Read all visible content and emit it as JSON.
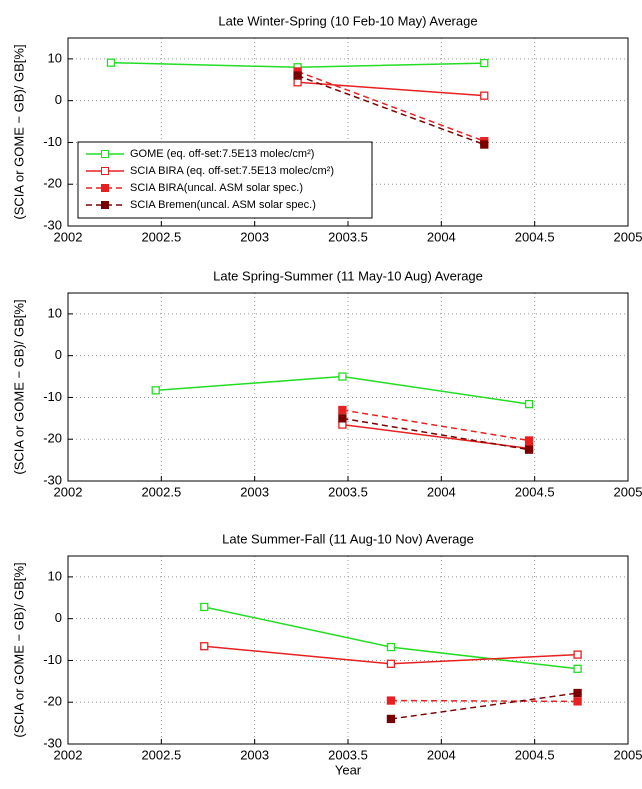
{
  "chart_data": [
    {
      "type": "line",
      "title": "Late Winter-Spring (10 Feb-10 May) Average",
      "ylabel": "(SCIA or GOME − GB)/ GB[%]",
      "xlim": [
        2002,
        2005
      ],
      "xticks": [
        2002,
        2002.5,
        2003,
        2003.5,
        2004,
        2004.5,
        2005
      ],
      "ylim": [
        -30,
        15
      ],
      "yticks": [
        -30,
        -20,
        -10,
        0,
        10
      ],
      "grid": true,
      "legend": "lower left",
      "series": [
        {
          "name": "GOME (eq. off-set:7.5E13 molec/cm²)",
          "color": "#22dd22",
          "dash": false,
          "marker": "open",
          "x": [
            2002.23,
            2003.23,
            2004.23
          ],
          "values": [
            9.1,
            8,
            9
          ]
        },
        {
          "name": "SCIA BIRA (eq. off-set:7.5E13 molec/cm²)",
          "color": "#e82020",
          "dash": false,
          "marker": "open",
          "x": [
            2003.23,
            2004.23
          ],
          "values": [
            4.4,
            1.2
          ]
        },
        {
          "name": "SCIA BIRA(uncal. ASM solar spec.)",
          "color": "#e82020",
          "dash": true,
          "marker": "filled",
          "x": [
            2003.23,
            2004.23
          ],
          "values": [
            7,
            -9.7
          ]
        },
        {
          "name": "SCIA Bremen(uncal. ASM solar spec.)",
          "color": "#7a0000",
          "dash": true,
          "marker": "filled",
          "x": [
            2003.23,
            2004.23
          ],
          "values": [
            6,
            -10.5
          ]
        }
      ]
    },
    {
      "type": "line",
      "title": "Late Spring-Summer (11 May-10 Aug) Average",
      "ylabel": "(SCIA or GOME − GB)/ GB[%]",
      "xlim": [
        2002,
        2005
      ],
      "xticks": [
        2002,
        2002.5,
        2003,
        2003.5,
        2004,
        2004.5,
        2005
      ],
      "ylim": [
        -30,
        15
      ],
      "yticks": [
        -30,
        -20,
        -10,
        0,
        10
      ],
      "grid": true,
      "series": [
        {
          "color": "#22dd22",
          "dash": false,
          "marker": "open",
          "x": [
            2002.47,
            2003.47,
            2004.47
          ],
          "values": [
            -8.3,
            -5,
            -11.6
          ]
        },
        {
          "color": "#e82020",
          "dash": false,
          "marker": "open",
          "x": [
            2003.47,
            2004.47
          ],
          "values": [
            -16.5,
            -22.2
          ]
        },
        {
          "color": "#e82020",
          "dash": true,
          "marker": "filled",
          "x": [
            2003.47,
            2004.47
          ],
          "values": [
            -13,
            -20.3
          ]
        },
        {
          "color": "#7a0000",
          "dash": true,
          "marker": "filled",
          "x": [
            2003.47,
            2004.47
          ],
          "values": [
            -15,
            -22.5
          ]
        }
      ]
    },
    {
      "type": "line",
      "title": "Late Summer-Fall (11 Aug-10 Nov) Average",
      "ylabel": "(SCIA or GOME − GB)/ GB[%]",
      "xlabel": "Year",
      "xlim": [
        2002,
        2005
      ],
      "xticks": [
        2002,
        2002.5,
        2003,
        2003.5,
        2004,
        2004.5,
        2005
      ],
      "ylim": [
        -30,
        15
      ],
      "yticks": [
        -30,
        -20,
        -10,
        0,
        10
      ],
      "grid": true,
      "series": [
        {
          "color": "#22dd22",
          "dash": false,
          "marker": "open",
          "x": [
            2002.73,
            2003.73,
            2004.73
          ],
          "values": [
            2.8,
            -6.8,
            -12
          ]
        },
        {
          "color": "#e82020",
          "dash": false,
          "marker": "open",
          "x": [
            2002.73,
            2003.73,
            2004.73
          ],
          "values": [
            -6.6,
            -10.8,
            -8.6
          ]
        },
        {
          "color": "#e82020",
          "dash": true,
          "marker": "filled",
          "x": [
            2003.73,
            2004.73
          ],
          "values": [
            -19.6,
            -19.8
          ]
        },
        {
          "color": "#7a0000",
          "dash": true,
          "marker": "filled",
          "x": [
            2003.73,
            2004.73
          ],
          "values": [
            -24,
            -17.8
          ]
        }
      ]
    }
  ]
}
